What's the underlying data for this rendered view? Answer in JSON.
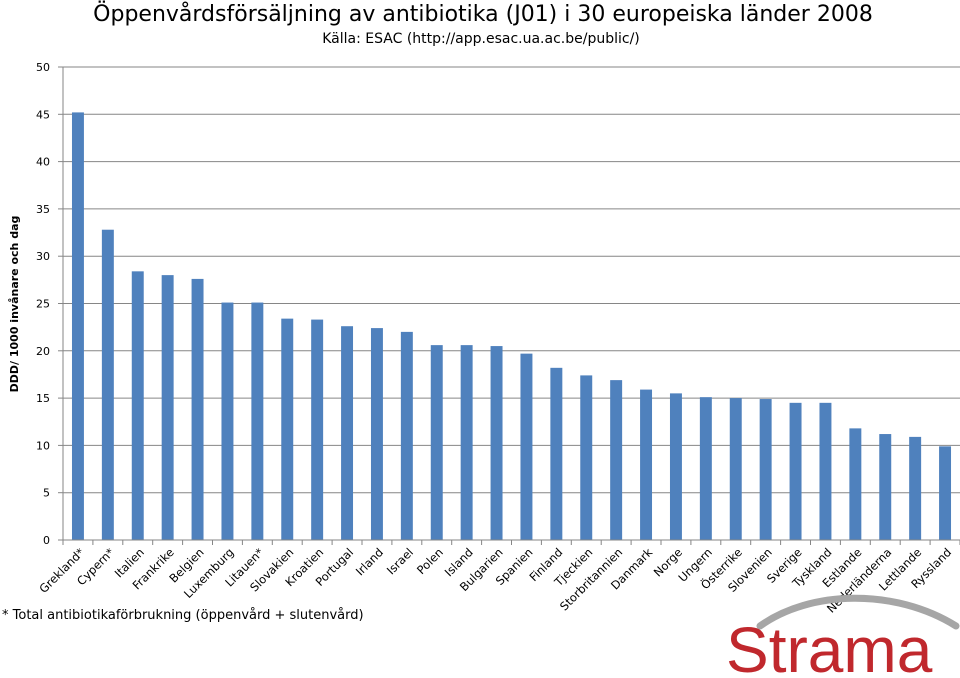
{
  "chart_data": {
    "type": "bar",
    "title": "Öppenvårdsförsäljning av antibiotika (J01) i 30 europeiska länder 2008",
    "subtitle": "Källa: ESAC (http://app.esac.ua.ac.be/public/)",
    "ylabel": "DDD/ 1000 invånare och dag",
    "xlabel": "",
    "ylim": [
      0,
      50
    ],
    "yticks": [
      0,
      5,
      10,
      15,
      20,
      25,
      30,
      35,
      40,
      45,
      50
    ],
    "grid": true,
    "bar_color": "#4F81BD",
    "categories": [
      "Grekland*",
      "Cypern*",
      "Italien",
      "Frankrike",
      "Belgien",
      "Luxemburg",
      "Litauen*",
      "Slovakien",
      "Kroatien",
      "Portugal",
      "Irland",
      "Israel",
      "Polen",
      "Island",
      "Bulgarien",
      "Spanien",
      "Finland",
      "Tjeckien",
      "Storbritannien",
      "Danmark",
      "Norge",
      "Ungern",
      "Österrike",
      "Slovenien",
      "Sverige",
      "Tyskland",
      "Estlande",
      "Nederländerna",
      "Lettlande",
      "Ryssland"
    ],
    "values": [
      45.2,
      32.8,
      28.4,
      28.0,
      27.6,
      25.1,
      25.1,
      23.4,
      23.3,
      22.6,
      22.4,
      22.0,
      20.6,
      20.6,
      20.5,
      19.7,
      18.2,
      17.4,
      16.9,
      15.9,
      15.5,
      15.1,
      15.0,
      14.9,
      14.5,
      14.5,
      11.8,
      11.2,
      10.9,
      9.9
    ]
  },
  "footnote": "* Total antibiotikaförbrukning (öppenvård + slutenvård)",
  "logo": {
    "text": "Strama",
    "color": "#C0282D",
    "swoosh_color": "#A6A6A6"
  }
}
